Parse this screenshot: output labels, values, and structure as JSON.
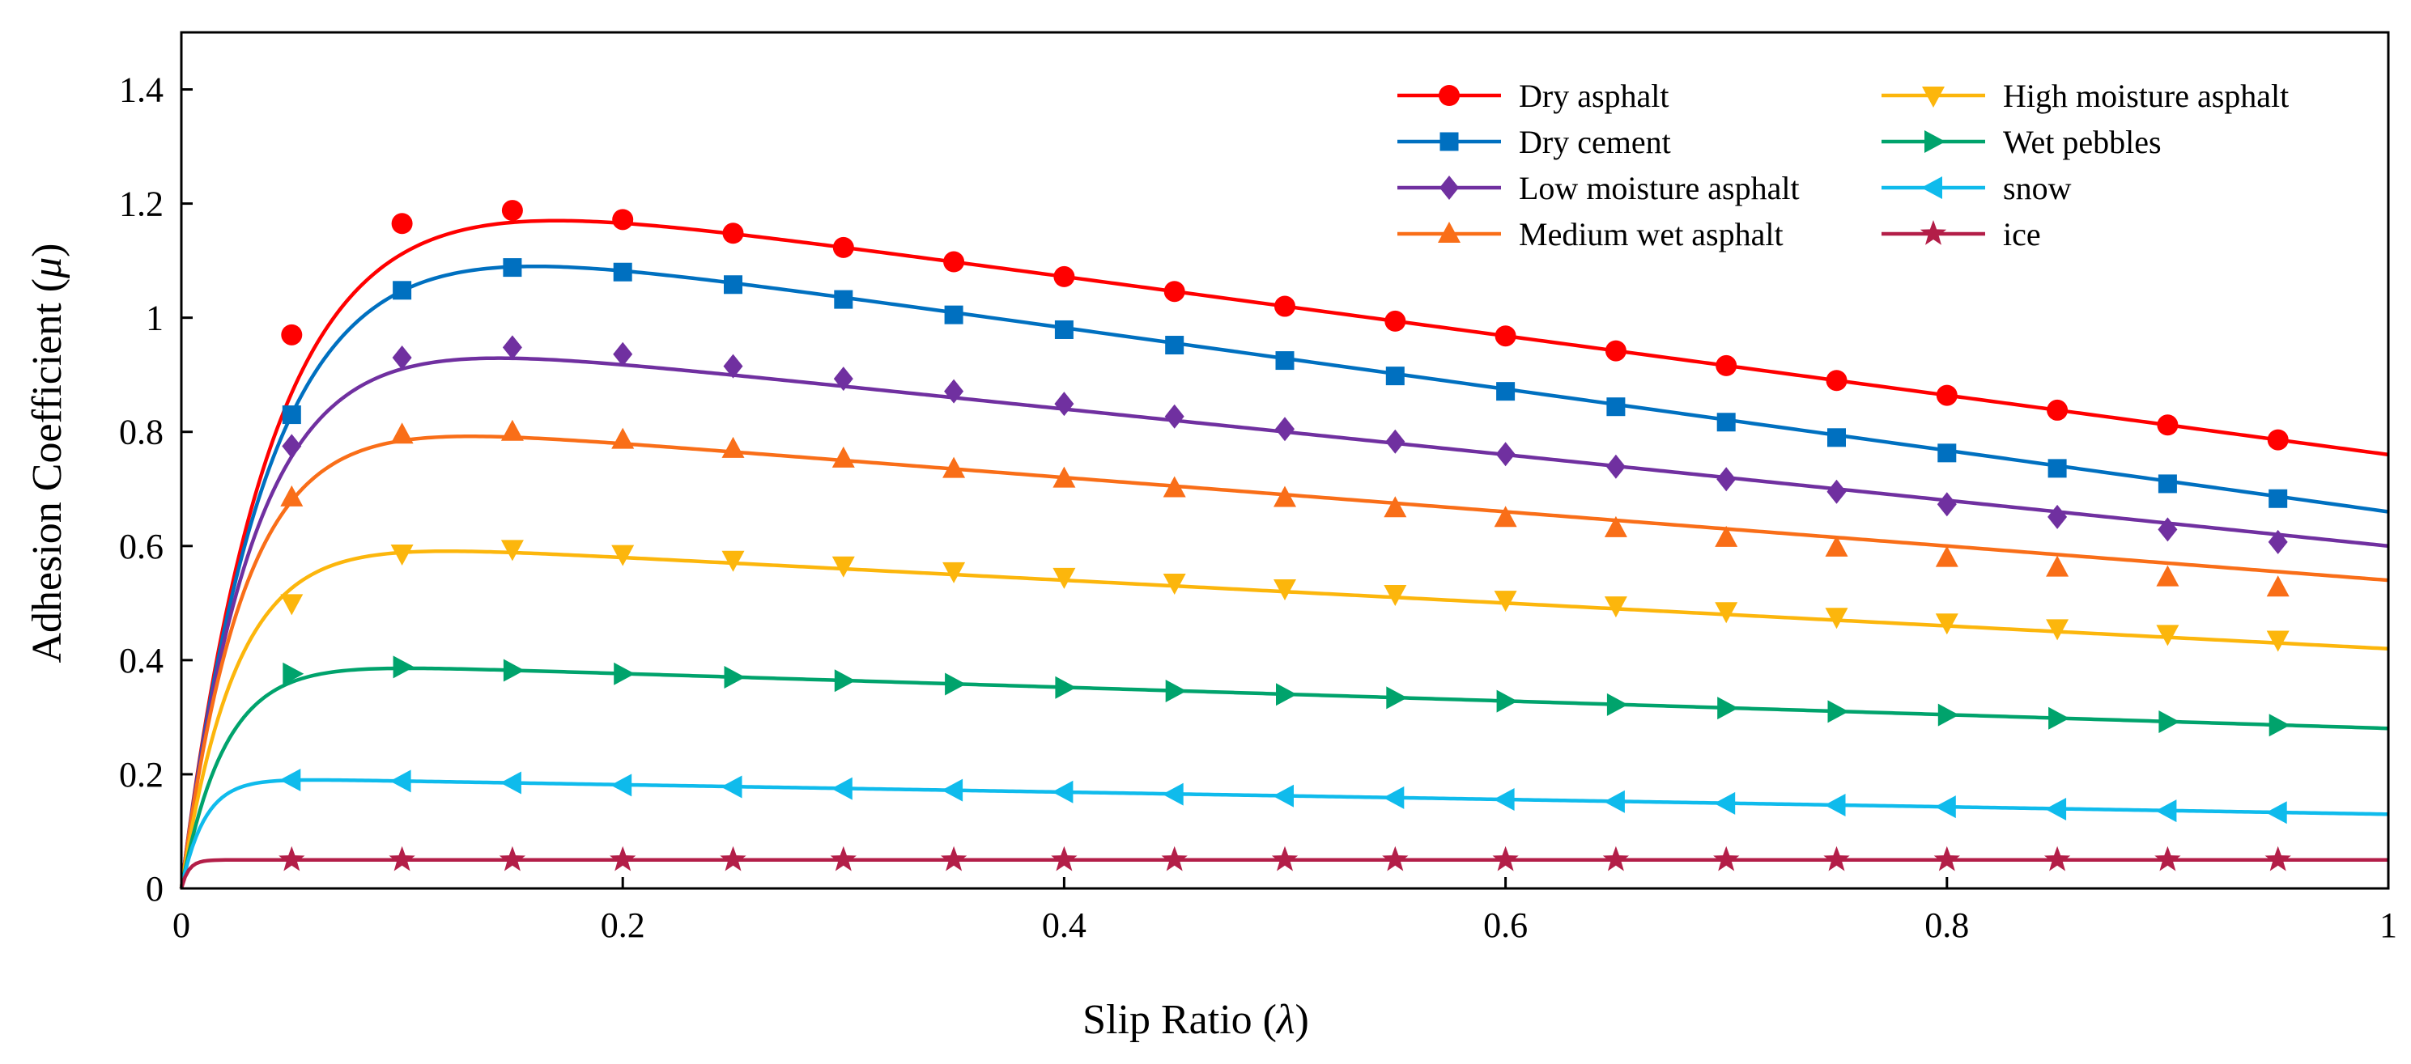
{
  "chart_data": {
    "type": "line",
    "title": "",
    "xlabel_prefix": "Slip Ratio (",
    "xlabel_symbol": "λ",
    "xlabel_suffix": ")",
    "ylabel_prefix": "Adhesion Coefficient (",
    "ylabel_symbol": "μ",
    "ylabel_suffix": ")",
    "xlim": [
      0,
      1
    ],
    "ylim": [
      0,
      1.5
    ],
    "xticks": [
      0,
      0.2,
      0.4,
      0.6,
      0.8,
      1
    ],
    "xtick_labels": [
      "0",
      "0.2",
      "0.4",
      "0.6",
      "0.8",
      "1"
    ],
    "yticks": [
      0,
      0.2,
      0.4,
      0.6,
      0.8,
      1,
      1.2,
      1.4
    ],
    "ytick_labels": [
      "0",
      "0.2",
      "0.4",
      "0.6",
      "0.8",
      "1",
      "1.2",
      "1.4"
    ],
    "grid": false,
    "legend_position": "top-right",
    "legend_columns": 2,
    "marker_x": [
      0.05,
      0.1,
      0.15,
      0.2,
      0.25,
      0.3,
      0.35,
      0.4,
      0.45,
      0.5,
      0.55,
      0.6,
      0.65,
      0.7,
      0.75,
      0.8,
      0.85,
      0.9,
      0.95
    ],
    "series": [
      {
        "name": "Dry asphalt",
        "color": "#ff0000",
        "marker": "circle",
        "c1": 1.2801,
        "c2": 23.99,
        "c3": 0.52,
        "values": [
          0.97,
          1.165,
          1.188,
          1.172,
          1.148,
          1.123,
          1.098,
          1.072,
          1.046,
          1.02,
          0.994,
          0.968,
          0.942,
          0.916,
          0.89,
          0.864,
          0.838,
          0.812,
          0.786
        ]
      },
      {
        "name": "Dry cement",
        "color": "#0070c0",
        "marker": "square",
        "c1": 1.1973,
        "c2": 25.168,
        "c3": 0.5373,
        "values": [
          0.83,
          1.048,
          1.088,
          1.08,
          1.058,
          1.032,
          1.005,
          0.979,
          0.952,
          0.925,
          0.898,
          0.871,
          0.844,
          0.817,
          0.79,
          0.763,
          0.736,
          0.709,
          0.683
        ]
      },
      {
        "name": "Low moisture asphalt",
        "color": "#7030a0",
        "marker": "diamond",
        "c1": 1.0,
        "c2": 30.0,
        "c3": 0.4,
        "values": [
          0.775,
          0.93,
          0.948,
          0.936,
          0.915,
          0.893,
          0.871,
          0.849,
          0.827,
          0.805,
          0.783,
          0.761,
          0.739,
          0.717,
          0.695,
          0.673,
          0.651,
          0.629,
          0.607
        ]
      },
      {
        "name": "Medium wet asphalt",
        "color": "#f96e18",
        "marker": "triangle-up",
        "c1": 0.84,
        "c2": 35.0,
        "c3": 0.3,
        "values": [
          0.685,
          0.795,
          0.8,
          0.786,
          0.77,
          0.753,
          0.735,
          0.718,
          0.701,
          0.684,
          0.666,
          0.649,
          0.631,
          0.614,
          0.597,
          0.579,
          0.562,
          0.545,
          0.527
        ]
      },
      {
        "name": "High moisture asphalt",
        "color": "#fcb60c",
        "marker": "triangle-down",
        "c1": 0.62,
        "c2": 40.0,
        "c3": 0.2,
        "values": [
          0.5,
          0.587,
          0.595,
          0.586,
          0.576,
          0.566,
          0.556,
          0.546,
          0.536,
          0.526,
          0.516,
          0.506,
          0.496,
          0.486,
          0.476,
          0.466,
          0.456,
          0.446,
          0.436
        ]
      },
      {
        "name": "Wet pebbles",
        "color": "#00a36c",
        "marker": "triangle-right",
        "c1": 0.4004,
        "c2": 50.0,
        "c3": 0.12,
        "values": [
          0.376,
          0.388,
          0.382,
          0.376,
          0.37,
          0.364,
          0.358,
          0.352,
          0.346,
          0.34,
          0.334,
          0.328,
          0.322,
          0.316,
          0.31,
          0.304,
          0.298,
          0.292,
          0.286
        ]
      },
      {
        "name": "snow",
        "color": "#0fbbec",
        "marker": "triangle-left",
        "c1": 0.1946,
        "c2": 94.129,
        "c3": 0.0646,
        "values": [
          0.19,
          0.188,
          0.185,
          0.181,
          0.178,
          0.175,
          0.172,
          0.169,
          0.165,
          0.162,
          0.159,
          0.156,
          0.152,
          0.149,
          0.146,
          0.143,
          0.139,
          0.136,
          0.133
        ]
      },
      {
        "name": "ice",
        "color": "#b31e48",
        "marker": "star",
        "c1": 0.05,
        "c2": 306.39,
        "c3": 0.0,
        "values": [
          0.05,
          0.05,
          0.05,
          0.05,
          0.05,
          0.05,
          0.05,
          0.05,
          0.05,
          0.05,
          0.05,
          0.05,
          0.05,
          0.05,
          0.05,
          0.05,
          0.05,
          0.05,
          0.05
        ]
      }
    ]
  }
}
